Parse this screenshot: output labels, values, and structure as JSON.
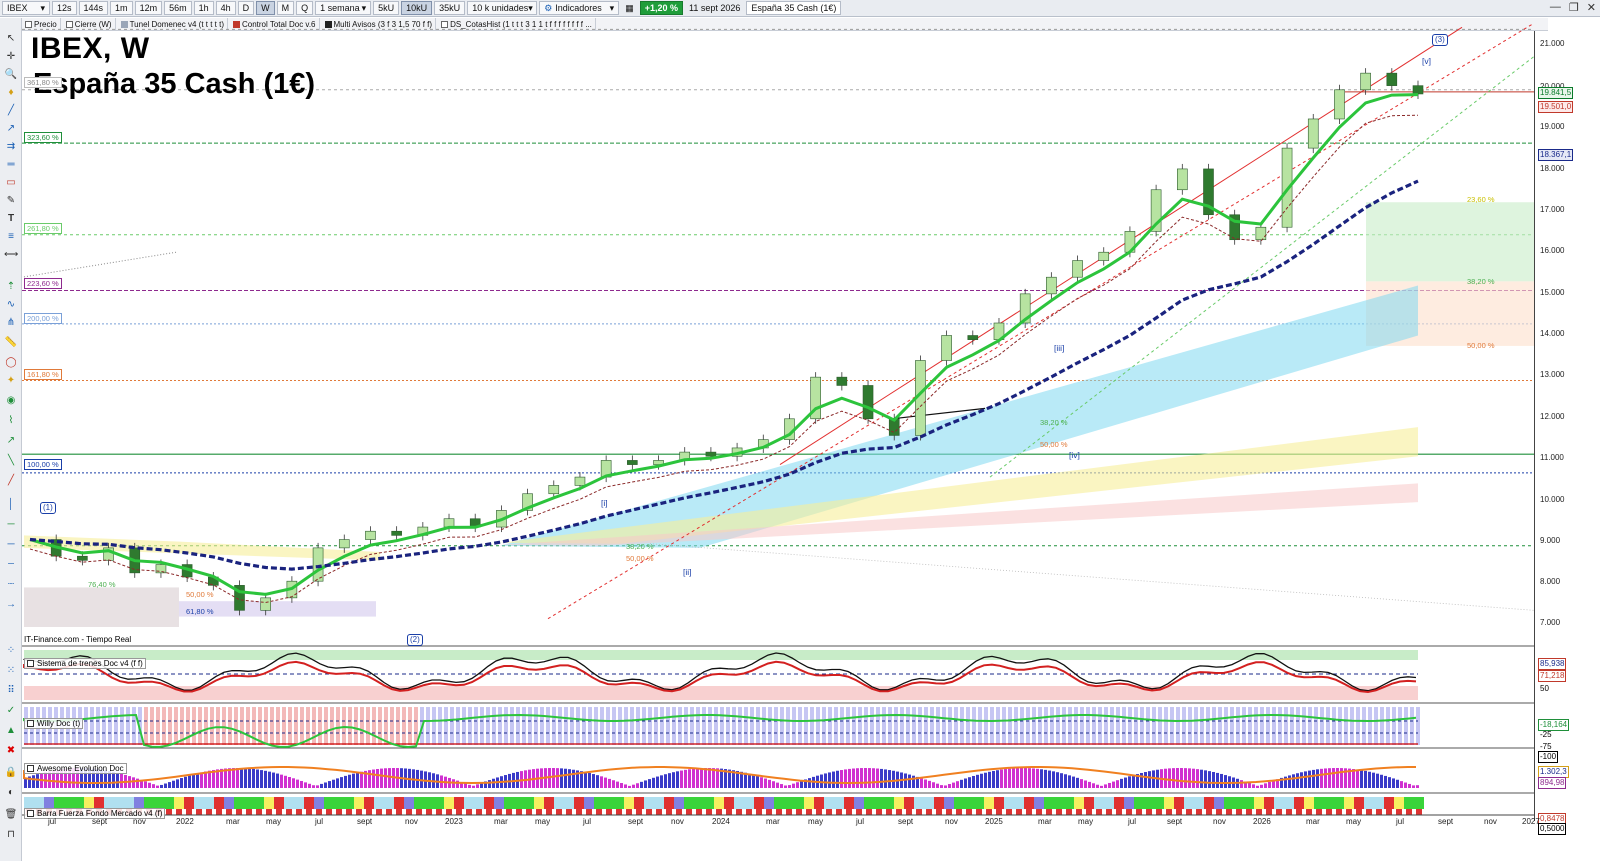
{
  "toolbar": {
    "symbol": "IBEX",
    "timeframes": [
      "12s",
      "144s",
      "1m",
      "12m",
      "56m",
      "1h",
      "4h",
      "D",
      "W",
      "M",
      "Q"
    ],
    "active_timeframe": "W",
    "period": "1 semana",
    "units": [
      "5kU",
      "10kU",
      "35kU"
    ],
    "active_unit": "10kU",
    "unit_select": "10 k unidades",
    "indicators_label": "Indicadores",
    "change": "+1,20 %",
    "date": "11 sept 2026",
    "instrument": "España 35 Cash (1€)"
  },
  "indicator_bar": [
    {
      "label": "Precio",
      "color": "#ffffff"
    },
    {
      "label": "Cierre (W)",
      "color": "#ffffff"
    },
    {
      "label": "Tunel Domenec v4 (t t t t t)",
      "color": "#9aa6b8"
    },
    {
      "label": "Control Total Doc v.6",
      "color": "#c0392b"
    },
    {
      "label": "Multi Avisos (3 f 3 1,5 70 f f)",
      "color": "#222222"
    },
    {
      "label": "DS_CotasHist (1 t t t 3 1 1 t f f f f f f f f ...",
      "color": "#ffffff"
    }
  ],
  "chart": {
    "title": "IBEX, W",
    "subtitle": "España 35 Cash (1€)",
    "source": "IT-Finance.com - Tiempo Real",
    "price_axis": [
      "21.000",
      "20.000",
      "19.000",
      "18.000",
      "17.000",
      "16.000",
      "15.000",
      "14.000",
      "13.000",
      "12.000",
      "11.000",
      "10.000",
      "9.000",
      "8.000",
      "7.000"
    ],
    "price_labels": [
      {
        "text": "19.841,5",
        "color": "#0a7a2a"
      },
      {
        "text": "19.501,0",
        "color": "#c0392b"
      },
      {
        "text": "18.367,1",
        "color": "#1a2a8a"
      }
    ],
    "time_axis": [
      "jul",
      "sept",
      "nov",
      "2022",
      "mar",
      "may",
      "jul",
      "sept",
      "nov",
      "2023",
      "mar",
      "may",
      "jul",
      "sept",
      "nov",
      "2024",
      "mar",
      "may",
      "jul",
      "sept",
      "nov",
      "2025",
      "mar",
      "may",
      "jul",
      "sept",
      "nov",
      "2026",
      "mar",
      "may",
      "jul",
      "sept",
      "nov",
      "2027"
    ],
    "fib_tags": [
      {
        "text": "361,80 %",
        "color": "#888888"
      },
      {
        "text": "323,60 %",
        "color": "#1f8f3a"
      },
      {
        "text": "261,80 %",
        "color": "#6acb6a"
      },
      {
        "text": "223,60 %",
        "color": "#8e2a8e"
      },
      {
        "text": "200,00 %",
        "color": "#7aa0d8"
      },
      {
        "text": "161,80 %",
        "color": "#e07a3a"
      },
      {
        "text": "100,00 %",
        "color": "#1a3fa8"
      }
    ],
    "fib_pct_labels": [
      "76,40 %",
      "50,00 %",
      "61,80 %",
      "38,20 %",
      "50,00 %",
      "38,20 %",
      "50,00 %",
      "23,60 %",
      "38,20 %",
      "50,00 %"
    ],
    "waves": [
      "(1)",
      "(2)",
      "(3)",
      "[i]",
      "[ii]",
      "[iii]",
      "[iv]",
      "[v]"
    ]
  },
  "panels": [
    {
      "title": "Sistema de trenes Doc v4 (f f)",
      "values": [
        "85,938",
        "71,218",
        "50"
      ]
    },
    {
      "title": "Willy Doc (t)",
      "values": [
        "-18,164",
        "-25",
        "-75",
        "-100"
      ]
    },
    {
      "title": "Awesome Evolution Doc",
      "values": [
        "1.302,3",
        "894,98"
      ]
    },
    {
      "title": "Barra Fuerza Fondo Mercado v4 (f)",
      "values": [
        "0,8478",
        "0,5000"
      ]
    }
  ],
  "series_data": {
    "close_weekly_approx": [
      9100,
      8700,
      8600,
      8900,
      8300,
      8500,
      8200,
      8000,
      7400,
      7700,
      8100,
      8900,
      9100,
      9300,
      9200,
      9400,
      9600,
      9400,
      9800,
      10200,
      10400,
      10600,
      11000,
      10900,
      11000,
      11200,
      11100,
      11300,
      11500,
      12000,
      13000,
      12800,
      12000,
      11600,
      13400,
      14000,
      13900,
      14300,
      15000,
      15400,
      15800,
      16000,
      16500,
      17500,
      18000,
      16900,
      16300,
      16600,
      18500,
      19200,
      19900,
      20300,
      20000,
      19800
    ]
  },
  "colors": {
    "ema_fast": "#2cc43c",
    "ema_slow": "#1a237e",
    "resistance": "#e23030",
    "support_dash": "#1f8f3a"
  }
}
